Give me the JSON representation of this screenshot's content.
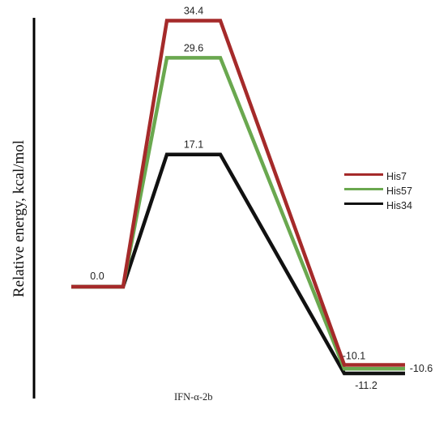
{
  "chart_data": {
    "type": "line",
    "title": "",
    "annotation": "IFN-α-2b",
    "xlabel": "",
    "ylabel": "Relative energy, kcal/mol",
    "ylim": [
      -12,
      36
    ],
    "grid": false,
    "legend_position": "right",
    "series": [
      {
        "name": "His7",
        "color": "#a52a2a",
        "values": [
          0.0,
          34.4,
          -10.1
        ]
      },
      {
        "name": "His57",
        "color": "#6aa84f",
        "values": [
          0.0,
          29.6,
          -10.6
        ]
      },
      {
        "name": "His34",
        "color": "#111111",
        "values": [
          0.0,
          17.1,
          -11.2
        ]
      }
    ],
    "data_labels": [
      "0.0",
      "34.4",
      "29.6",
      "17.1",
      "-10.1",
      "-10.6",
      "-11.2"
    ]
  }
}
